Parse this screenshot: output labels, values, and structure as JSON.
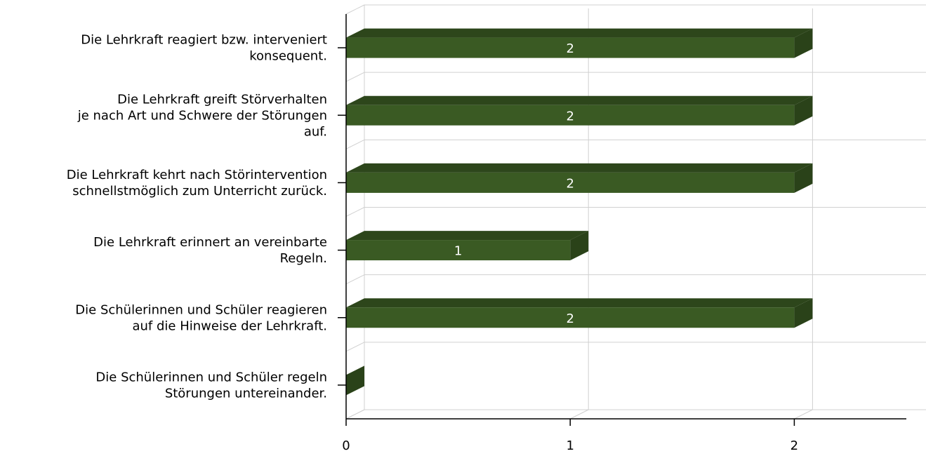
{
  "chart_data": {
    "type": "bar",
    "orientation": "horizontal",
    "style": "3d",
    "categories": [
      [
        "Die Lehrkraft reagiert bzw. interveniert",
        "konsequent."
      ],
      [
        "Die Lehrkraft greift Störverhalten",
        "je nach Art und Schwere der Störungen",
        "auf."
      ],
      [
        "Die Lehrkraft kehrt nach Störintervention",
        "schnellstmöglich zum Unterricht zurück."
      ],
      [
        "Die Lehrkraft erinnert an vereinbarte",
        "Regeln."
      ],
      [
        "Die Schülerinnen und Schüler reagieren",
        "auf die Hinweise der Lehrkraft."
      ],
      [
        "Die Schülerinnen und Schüler regeln",
        "Störungen untereinander."
      ]
    ],
    "values": [
      2,
      2,
      2,
      1,
      2,
      0
    ],
    "data_labels": [
      "2",
      "2",
      "2",
      "1",
      "2",
      ""
    ],
    "xticks": [
      "0",
      "1",
      "2"
    ],
    "xlim": [
      0,
      2.5
    ],
    "grid": true,
    "legend": "none",
    "title": "",
    "xlabel": "",
    "ylabel": "",
    "colors": {
      "bar_front": "#3a5a23",
      "bar_top": "#2d461b",
      "bar_side": "#2a4219",
      "grid": "#d0d0d0",
      "axis": "#000000"
    }
  }
}
